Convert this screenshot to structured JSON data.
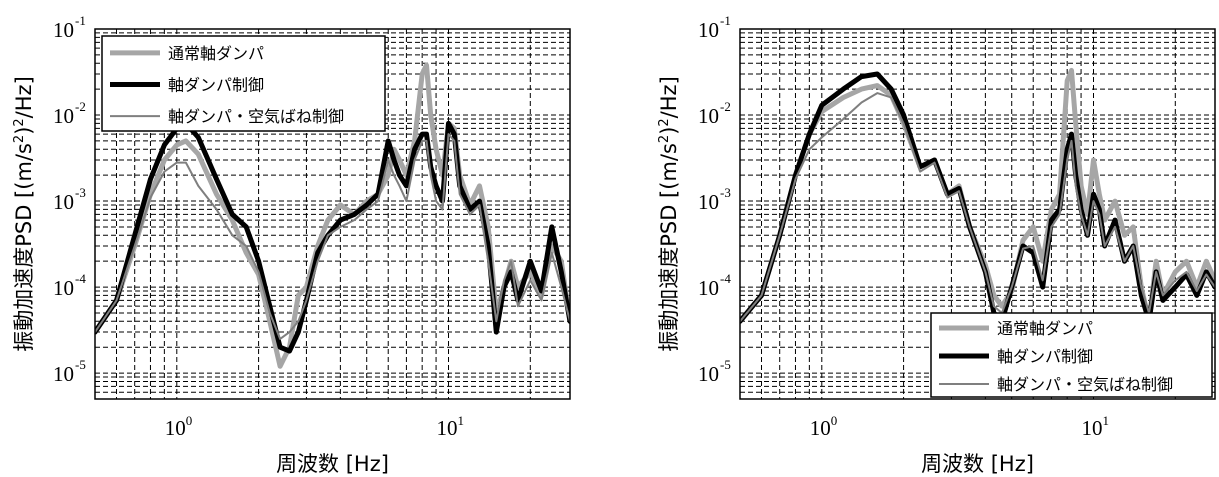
{
  "chart_data": [
    {
      "type": "line",
      "xscale": "log",
      "yscale": "log",
      "xlim": [
        0.5,
        28
      ],
      "ylim": [
        5e-06,
        0.1
      ],
      "xlabel": "周波数 [Hz]",
      "ylabel_main": "振動加速度PSD [(m/s",
      "ylabel_sup": "2",
      "ylabel_tail": ")",
      "ylabel_sup2": "2",
      "ylabel_end": "/Hz]",
      "xticks": [
        {
          "base": "10",
          "exp": "0",
          "value": 1
        },
        {
          "base": "10",
          "exp": "1",
          "value": 10
        }
      ],
      "yticks": [
        {
          "base": "10",
          "exp": "-5",
          "value": 1e-05
        },
        {
          "base": "10",
          "exp": "-4",
          "value": 0.0001
        },
        {
          "base": "10",
          "exp": "-3",
          "value": 0.001
        },
        {
          "base": "10",
          "exp": "-2",
          "value": 0.01
        },
        {
          "base": "10",
          "exp": "-1",
          "value": 0.1
        }
      ],
      "grid": true,
      "legend_position": "top-left",
      "series": [
        {
          "name": "通常軸ダンパ",
          "color": "#a6a6a6",
          "width": 5,
          "x": [
            0.5,
            0.6,
            0.7,
            0.8,
            0.9,
            1.0,
            1.08,
            1.2,
            1.4,
            1.6,
            1.8,
            2.0,
            2.2,
            2.4,
            2.6,
            2.8,
            3.0,
            3.3,
            3.6,
            4.0,
            4.5,
            5.0,
            5.5,
            6.0,
            6.3,
            6.6,
            7.0,
            7.5,
            8.0,
            8.3,
            8.6,
            9.0,
            9.5,
            10.0,
            10.5,
            11.0,
            12.0,
            13.0,
            14.0,
            15.0,
            16.0,
            17.0,
            18.0,
            20.0,
            22.0,
            24.0,
            26.0,
            28.0
          ],
          "y": [
            3e-05,
            7e-05,
            0.0003,
            0.0012,
            0.003,
            0.0045,
            0.005,
            0.0035,
            0.0012,
            0.0006,
            0.00025,
            0.00014,
            4e-05,
            1.2e-05,
            2e-05,
            8e-05,
            0.0001,
            0.0003,
            0.0006,
            0.0009,
            0.0007,
            0.001,
            0.0012,
            0.002,
            0.004,
            0.003,
            0.002,
            0.005,
            0.03,
            0.038,
            0.01,
            0.004,
            0.002,
            0.008,
            0.007,
            0.002,
            0.0009,
            0.0015,
            0.0005,
            5e-05,
            0.0001,
            0.0002,
            0.0001,
            0.00015,
            8e-05,
            0.0003,
            0.0002,
            4e-05
          ]
        },
        {
          "name": "軸ダンパ制御",
          "color": "#000000",
          "width": 5,
          "x": [
            0.5,
            0.6,
            0.7,
            0.8,
            0.9,
            1.0,
            1.08,
            1.2,
            1.4,
            1.6,
            1.8,
            2.0,
            2.2,
            2.4,
            2.6,
            2.8,
            3.0,
            3.3,
            3.6,
            4.0,
            4.5,
            5.0,
            5.5,
            6.0,
            6.3,
            6.6,
            7.0,
            7.5,
            8.0,
            8.3,
            8.6,
            9.0,
            9.5,
            10.0,
            10.5,
            11.0,
            12.0,
            13.0,
            14.0,
            15.0,
            16.0,
            17.0,
            18.0,
            20.0,
            22.0,
            24.0,
            26.0,
            28.0
          ],
          "y": [
            3e-05,
            7e-05,
            0.0004,
            0.0018,
            0.0045,
            0.007,
            0.008,
            0.0055,
            0.0018,
            0.0007,
            0.0005,
            0.0002,
            6e-05,
            2e-05,
            1.8e-05,
            3e-05,
            7e-05,
            0.00025,
            0.0004,
            0.0006,
            0.0007,
            0.0009,
            0.0012,
            0.005,
            0.003,
            0.002,
            0.0015,
            0.004,
            0.006,
            0.006,
            0.0025,
            0.0015,
            0.001,
            0.008,
            0.006,
            0.0015,
            0.0008,
            0.001,
            0.0003,
            3e-05,
            0.0001,
            0.00015,
            7e-05,
            0.0002,
            9e-05,
            0.0005,
            0.00015,
            4e-05
          ]
        },
        {
          "name": "軸ダンパ・空気ばね制御",
          "color": "#7f7f7f",
          "width": 2,
          "x": [
            0.5,
            0.6,
            0.7,
            0.8,
            0.9,
            1.0,
            1.08,
            1.2,
            1.4,
            1.6,
            1.8,
            2.0,
            2.2,
            2.4,
            2.6,
            2.8,
            3.0,
            3.3,
            3.6,
            4.0,
            4.5,
            5.0,
            5.5,
            6.0,
            6.3,
            6.6,
            7.0,
            7.5,
            8.0,
            8.3,
            8.6,
            9.0,
            9.5,
            10.0,
            10.5,
            11.0,
            12.0,
            13.0,
            14.0,
            15.0,
            16.0,
            17.0,
            18.0,
            20.0,
            22.0,
            24.0,
            26.0,
            28.0
          ],
          "y": [
            3e-05,
            7e-05,
            0.0003,
            0.0011,
            0.0022,
            0.0028,
            0.0028,
            0.0015,
            0.0008,
            0.0004,
            0.0003,
            0.00015,
            5e-05,
            2.5e-05,
            3e-05,
            4e-05,
            7e-05,
            0.0002,
            0.0004,
            0.0005,
            0.0006,
            0.0008,
            0.001,
            0.003,
            0.002,
            0.0015,
            0.001,
            0.003,
            0.005,
            0.005,
            0.002,
            0.001,
            0.0008,
            0.006,
            0.005,
            0.0012,
            0.0007,
            0.0009,
            0.0002,
            4e-05,
            0.00012,
            0.0002,
            6e-05,
            0.00012,
            7e-05,
            0.00025,
            0.0001,
            4e-05
          ]
        }
      ]
    },
    {
      "type": "line",
      "xscale": "log",
      "yscale": "log",
      "xlim": [
        0.5,
        28
      ],
      "ylim": [
        5e-06,
        0.1
      ],
      "xlabel": "周波数 [Hz]",
      "ylabel_main": "振動加速度PSD [(m/s",
      "ylabel_sup": "2",
      "ylabel_tail": ")",
      "ylabel_sup2": "2",
      "ylabel_end": "/Hz]",
      "xticks": [
        {
          "base": "10",
          "exp": "0",
          "value": 1
        },
        {
          "base": "10",
          "exp": "1",
          "value": 10
        }
      ],
      "yticks": [
        {
          "base": "10",
          "exp": "-5",
          "value": 1e-05
        },
        {
          "base": "10",
          "exp": "-4",
          "value": 0.0001
        },
        {
          "base": "10",
          "exp": "-3",
          "value": 0.001
        },
        {
          "base": "10",
          "exp": "-2",
          "value": 0.01
        },
        {
          "base": "10",
          "exp": "-1",
          "value": 0.1
        }
      ],
      "grid": true,
      "legend_position": "bottom-right",
      "series": [
        {
          "name": "通常軸ダンパ",
          "color": "#a6a6a6",
          "width": 5,
          "x": [
            0.5,
            0.6,
            0.7,
            0.8,
            0.9,
            1.0,
            1.2,
            1.4,
            1.6,
            1.8,
            2.0,
            2.3,
            2.6,
            2.9,
            3.2,
            3.5,
            4.0,
            4.3,
            4.6,
            5.0,
            5.5,
            6.0,
            6.5,
            7.0,
            7.5,
            8.0,
            8.3,
            8.6,
            9.0,
            9.5,
            10.0,
            10.5,
            11.0,
            12.0,
            13.0,
            14.0,
            15.0,
            16.0,
            17.0,
            18.0,
            20.0,
            22.0,
            24.0,
            26.0,
            28.0
          ],
          "y": [
            4e-05,
            8e-05,
            0.0004,
            0.002,
            0.006,
            0.011,
            0.016,
            0.02,
            0.022,
            0.017,
            0.008,
            0.0025,
            0.003,
            0.0012,
            0.0015,
            0.0005,
            0.00018,
            8e-05,
            6e-05,
            9e-05,
            0.00035,
            0.0005,
            0.0002,
            0.0008,
            0.0012,
            0.025,
            0.033,
            0.008,
            0.0015,
            0.0007,
            0.003,
            0.0012,
            0.0006,
            0.001,
            0.0004,
            0.0005,
            0.0001,
            4e-05,
            0.0002,
            8e-05,
            0.00015,
            0.0002,
            0.0001,
            0.0002,
            0.00012
          ]
        },
        {
          "name": "軸ダンパ制御",
          "color": "#000000",
          "width": 5,
          "x": [
            0.5,
            0.6,
            0.7,
            0.8,
            0.9,
            1.0,
            1.2,
            1.4,
            1.6,
            1.8,
            2.0,
            2.3,
            2.6,
            2.9,
            3.2,
            3.5,
            4.0,
            4.3,
            4.6,
            5.0,
            5.5,
            6.0,
            6.5,
            7.0,
            7.5,
            8.0,
            8.3,
            8.6,
            9.0,
            9.5,
            10.0,
            10.5,
            11.0,
            12.0,
            13.0,
            14.0,
            15.0,
            16.0,
            17.0,
            18.0,
            20.0,
            22.0,
            24.0,
            26.0,
            28.0
          ],
          "y": [
            4e-05,
            8e-05,
            0.0004,
            0.002,
            0.006,
            0.013,
            0.02,
            0.028,
            0.03,
            0.02,
            0.01,
            0.0025,
            0.003,
            0.0012,
            0.0014,
            0.0005,
            0.00015,
            5e-05,
            4e-05,
            0.0001,
            0.0003,
            0.00025,
            0.0001,
            0.0006,
            0.0008,
            0.004,
            0.006,
            0.002,
            0.0008,
            0.0004,
            0.0012,
            0.0008,
            0.0003,
            0.0006,
            0.0002,
            0.0003,
            8e-05,
            4e-05,
            0.00015,
            7e-05,
            0.0001,
            0.00014,
            8e-05,
            0.00015,
            0.0001
          ]
        },
        {
          "name": "軸ダンパ・空気ばね制御",
          "color": "#7f7f7f",
          "width": 2,
          "x": [
            0.5,
            0.6,
            0.7,
            0.8,
            0.9,
            1.0,
            1.2,
            1.4,
            1.6,
            1.8,
            2.0,
            2.3,
            2.6,
            2.9,
            3.2,
            3.5,
            4.0,
            4.3,
            4.6,
            5.0,
            5.5,
            6.0,
            6.5,
            7.0,
            7.5,
            8.0,
            8.3,
            8.6,
            9.0,
            9.5,
            10.0,
            10.5,
            11.0,
            12.0,
            13.0,
            14.0,
            15.0,
            16.0,
            17.0,
            18.0,
            20.0,
            22.0,
            24.0,
            26.0,
            28.0
          ],
          "y": [
            4e-05,
            8e-05,
            0.0004,
            0.0018,
            0.004,
            0.0055,
            0.009,
            0.014,
            0.018,
            0.016,
            0.008,
            0.0022,
            0.0028,
            0.0011,
            0.0013,
            0.0005,
            0.00015,
            6e-05,
            5e-05,
            0.0001,
            0.00028,
            0.0003,
            0.00012,
            0.0005,
            0.0007,
            0.003,
            0.005,
            0.0015,
            0.0007,
            0.0004,
            0.001,
            0.0007,
            0.0003,
            0.0005,
            0.0002,
            0.0003,
            0.0001,
            5e-05,
            0.00015,
            8e-05,
            0.00012,
            0.00015,
            9e-05,
            0.00014,
            0.0001
          ]
        }
      ]
    }
  ]
}
